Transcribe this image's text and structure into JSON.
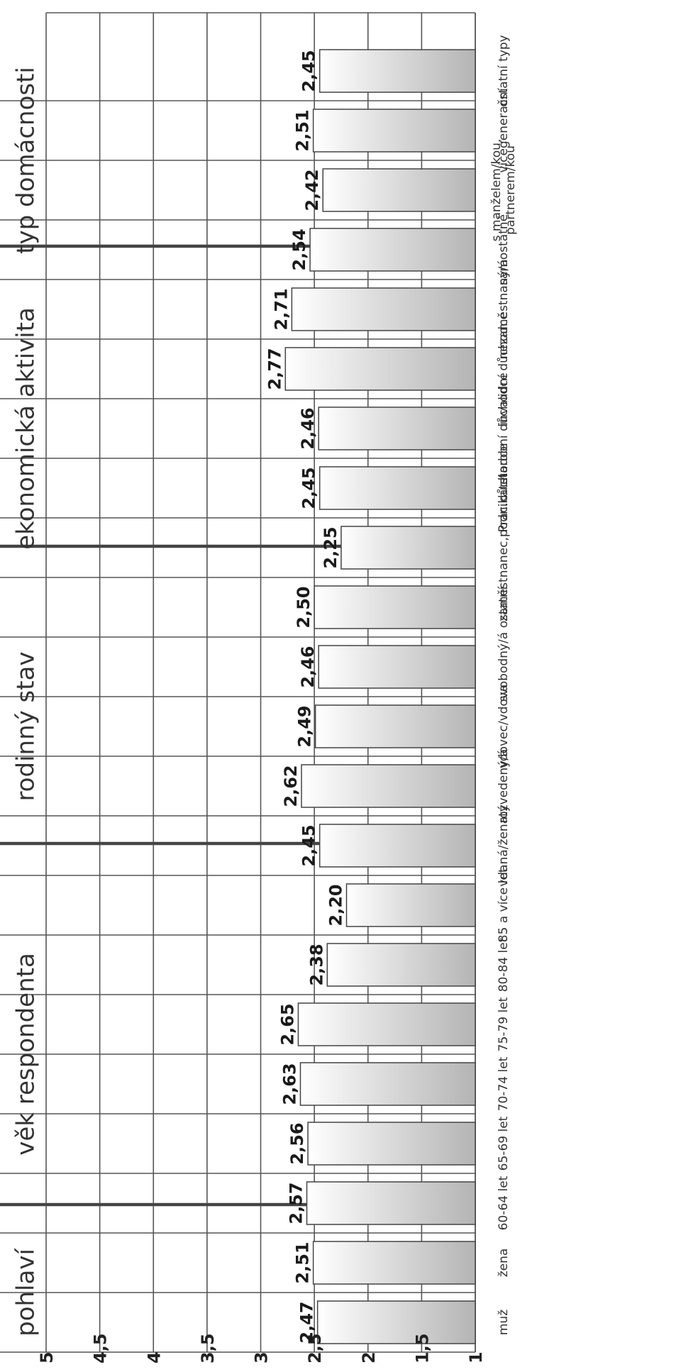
{
  "chart_data": {
    "type": "bar",
    "orientation": "horizontal",
    "xlim": [
      1,
      5
    ],
    "ticks": [
      "1",
      "1,5",
      "2",
      "2,5",
      "3",
      "3,5",
      "4",
      "4,5",
      "5"
    ],
    "tick_values": [
      1,
      1.5,
      2,
      2.5,
      3,
      3.5,
      4,
      4.5,
      5
    ],
    "grid": true,
    "bar_gradient": [
      "#ffffff",
      "#b4b4b4"
    ],
    "groups": [
      {
        "name": "pohlaví",
        "categories": [
          "muž",
          "žena"
        ],
        "values": [
          2.47,
          2.51
        ],
        "value_labels": [
          "2,47",
          "2,51"
        ]
      },
      {
        "name": "věk respondenta",
        "categories": [
          "60-64 let",
          "65-69 let",
          "70-74 let",
          "75-79 let",
          "80-84 let",
          "85 a více let"
        ],
        "values": [
          2.57,
          2.56,
          2.63,
          2.65,
          2.38,
          2.2
        ],
        "value_labels": [
          "2,57",
          "2,56",
          "2,63",
          "2,65",
          "2,38",
          "2,20"
        ]
      },
      {
        "name": "rodinný stav",
        "categories": [
          "vdaná/ženatý",
          "rozvedený/á",
          "vdovec/vdova",
          "svobodný/á",
          "ostatní"
        ],
        "values": [
          2.45,
          2.62,
          2.49,
          2.46,
          2.5
        ],
        "value_labels": [
          "2,45",
          "2,62",
          "2,49",
          "2,46",
          "2,50"
        ]
      },
      {
        "name": "ekonomická aktivita",
        "categories": [
          "zaměstnanec,podnikatel",
          "Prac.důchodce",
          "starobní důchodce",
          "invalidní důchodce",
          "nezaměstnaný/á"
        ],
        "values": [
          2.25,
          2.45,
          2.46,
          2.77,
          2.71
        ],
        "value_labels": [
          "2,25",
          "2,45",
          "2,46",
          "2,77",
          "2,71"
        ]
      },
      {
        "name": "typ domácnosti",
        "categories": [
          "samostatně",
          "s manželem/kou, partnerem/kou",
          "vícegenerační",
          "ostatní typy"
        ],
        "values": [
          2.54,
          2.42,
          2.51,
          2.45
        ],
        "value_labels": [
          "2,54",
          "2,42",
          "2,51",
          "2,45"
        ]
      }
    ]
  }
}
